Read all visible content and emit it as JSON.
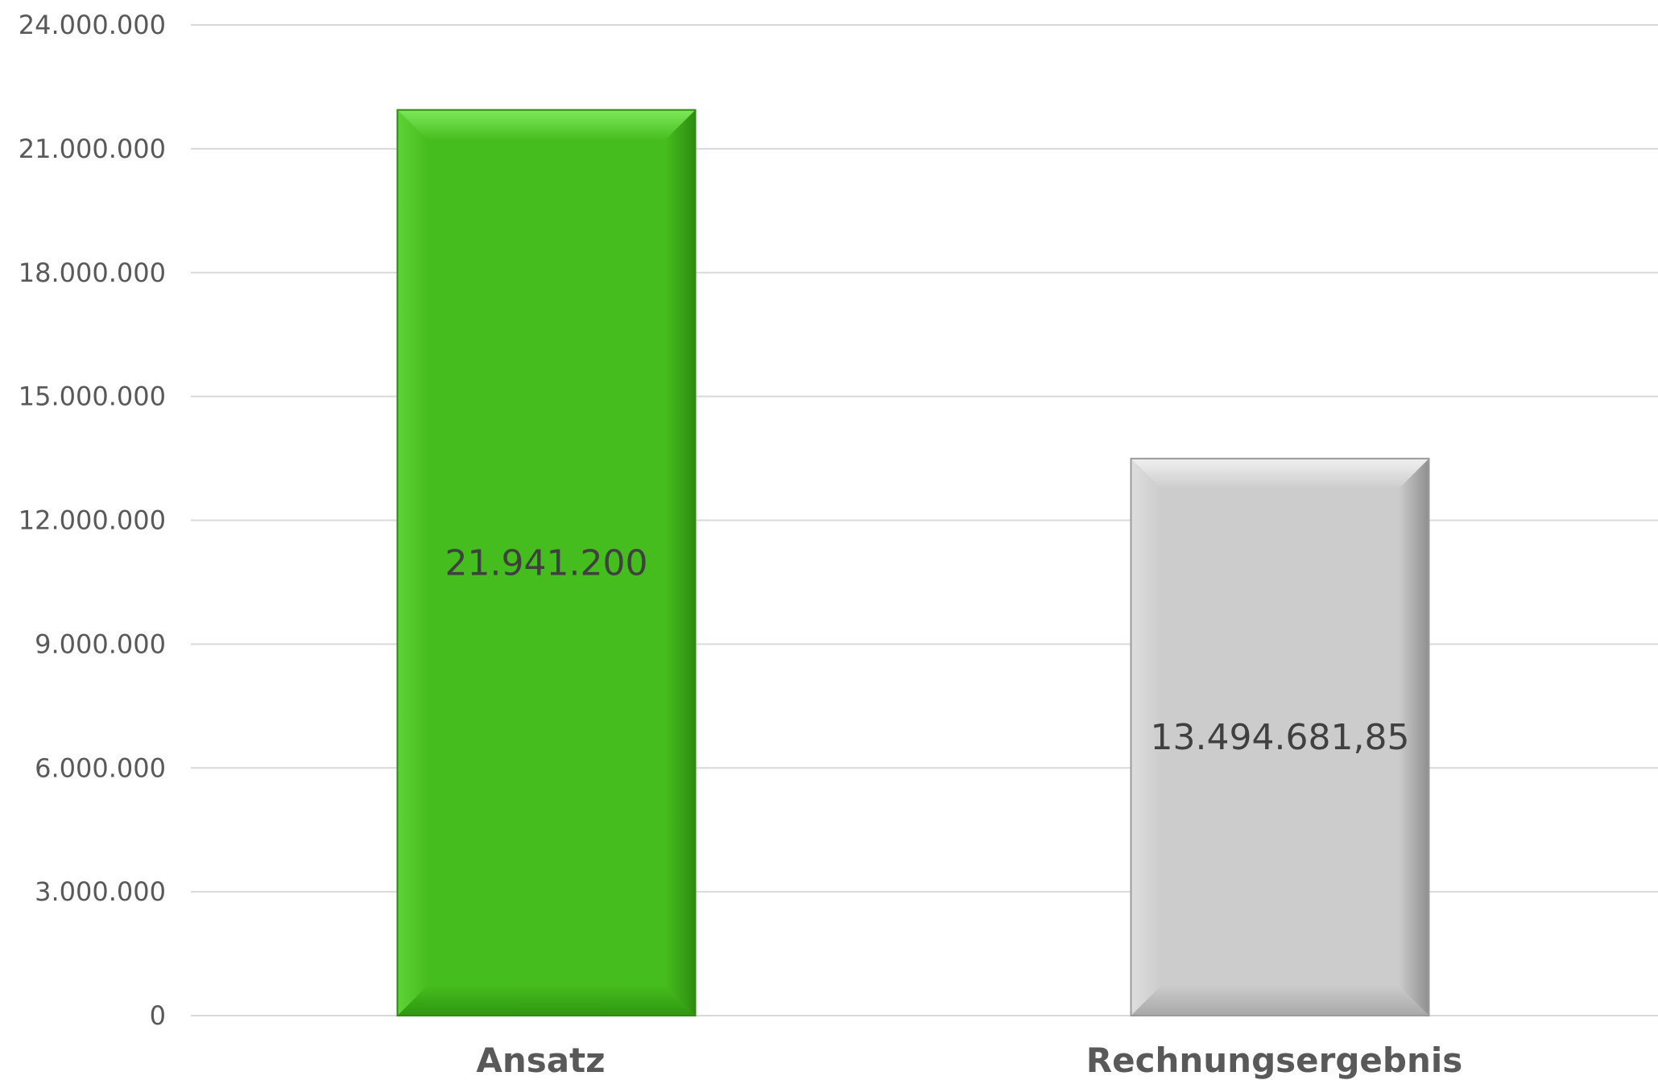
{
  "chart_data": {
    "type": "bar",
    "categories": [
      "Ansatz",
      "Rechnungsergebnis"
    ],
    "values": [
      21941200,
      13494681.85
    ],
    "data_labels": [
      "21.941.200",
      "13.494.681,85"
    ],
    "title": "",
    "xlabel": "",
    "ylabel": "",
    "ylim": [
      0,
      24000000
    ],
    "yticks": [
      0,
      3000000,
      6000000,
      9000000,
      12000000,
      15000000,
      18000000,
      21000000,
      24000000
    ],
    "ytick_labels": [
      "0",
      "3.000.000",
      "6.000.000",
      "9.000.000",
      "12.000.000",
      "15.000.000",
      "18.000.000",
      "21.000.000",
      "24.000.000"
    ],
    "grid": true,
    "legend": "none",
    "colors": [
      "#46bd1e",
      "#cccccc"
    ]
  }
}
